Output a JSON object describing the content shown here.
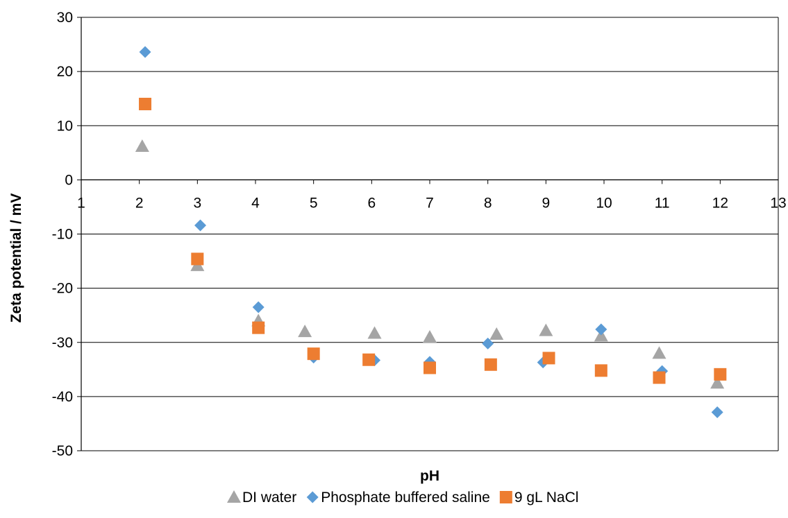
{
  "chart_data": {
    "type": "scatter",
    "title": "",
    "xlabel": "pH",
    "ylabel": "Zeta potential / mV",
    "xlim": [
      1,
      13
    ],
    "ylim": [
      -50,
      30
    ],
    "x_ticks": [
      1,
      2,
      3,
      4,
      5,
      6,
      7,
      8,
      9,
      10,
      11,
      12,
      13
    ],
    "y_ticks": [
      30,
      20,
      10,
      0,
      -10,
      -20,
      -30,
      -40,
      -50
    ],
    "grid": "horizontal major gridlines",
    "legend_position": "bottom",
    "series": [
      {
        "name": "DI water",
        "marker": "triangle",
        "color": "#a5a5a5",
        "points": [
          [
            2.05,
            6.2
          ],
          [
            3.0,
            -15.8
          ],
          [
            4.05,
            -26.0
          ],
          [
            4.85,
            -28.0
          ],
          [
            6.05,
            -28.3
          ],
          [
            7.0,
            -29.0
          ],
          [
            8.15,
            -28.5
          ],
          [
            9.0,
            -27.8
          ],
          [
            9.95,
            -28.8
          ],
          [
            10.95,
            -32.0
          ],
          [
            11.95,
            -37.5
          ]
        ]
      },
      {
        "name": "Phosphate buffered saline",
        "marker": "diamond",
        "color": "#5b9bd5",
        "points": [
          [
            2.1,
            23.6
          ],
          [
            3.05,
            -8.4
          ],
          [
            4.05,
            -23.5
          ],
          [
            5.0,
            -32.8
          ],
          [
            6.05,
            -33.3
          ],
          [
            7.0,
            -33.6
          ],
          [
            8.0,
            -30.2
          ],
          [
            8.95,
            -33.7
          ],
          [
            9.95,
            -27.6
          ],
          [
            11.0,
            -35.3
          ],
          [
            11.95,
            -42.9
          ]
        ]
      },
      {
        "name": "9 gL NaCl",
        "marker": "square",
        "color": "#ed7d31",
        "points": [
          [
            2.1,
            14.0
          ],
          [
            3.0,
            -14.6
          ],
          [
            4.05,
            -27.3
          ],
          [
            5.0,
            -32.1
          ],
          [
            5.95,
            -33.2
          ],
          [
            7.0,
            -34.7
          ],
          [
            8.05,
            -34.1
          ],
          [
            9.05,
            -32.9
          ],
          [
            9.95,
            -35.2
          ],
          [
            10.95,
            -36.5
          ],
          [
            12.0,
            -35.9
          ]
        ]
      }
    ]
  }
}
